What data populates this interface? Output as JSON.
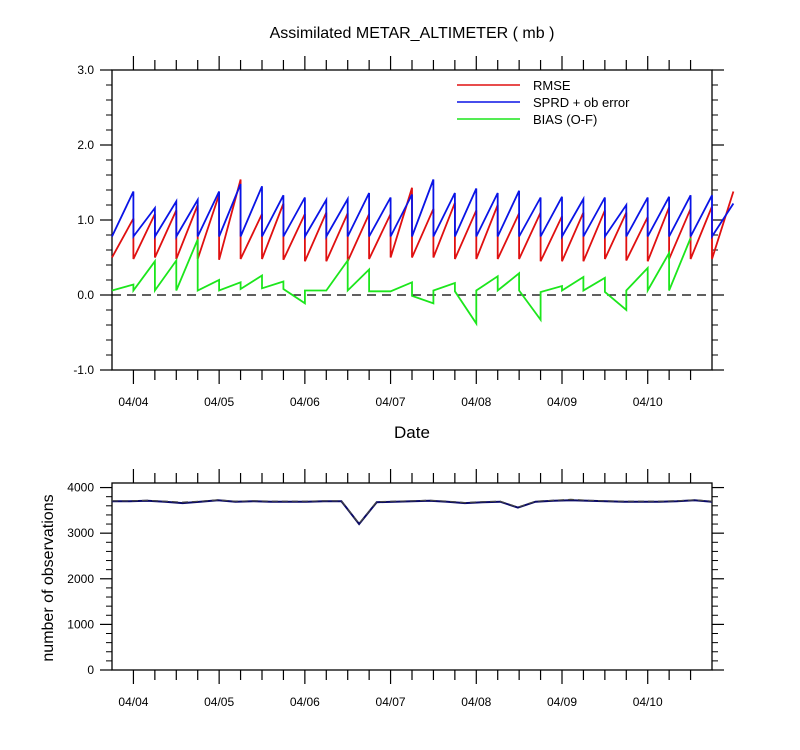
{
  "chart_data": [
    {
      "type": "line",
      "title": "Assimilated METAR_ALTIMETER ( mb )",
      "xlabel": "Date",
      "ylabel": "",
      "ylim": [
        -1.0,
        3.0
      ],
      "yticks": [
        -1.0,
        0.0,
        1.0,
        2.0,
        3.0
      ],
      "ytick_labels": [
        "-1.0",
        "0.0",
        "1.0",
        "2.0",
        "3.0"
      ],
      "xlim": [
        "04/03 18:00",
        "04/10 18:00"
      ],
      "x_tick_labels": [
        "04/04",
        "04/05",
        "04/06",
        "04/07",
        "04/08",
        "04/09",
        "04/10"
      ],
      "legend_position": "top-right",
      "reference_line": {
        "y": 0.0,
        "style": "dashed"
      },
      "time_step_hours": 6,
      "series": [
        {
          "name": "RMSE",
          "color": "#e01010",
          "segments": [
            [
              0.5,
              1.02
            ],
            [
              0.48,
              1.08
            ],
            [
              0.5,
              1.13
            ],
            [
              0.48,
              1.2
            ],
            [
              0.48,
              1.34
            ],
            [
              0.47,
              1.54
            ],
            [
              0.48,
              1.08
            ],
            [
              0.48,
              1.22
            ],
            [
              0.47,
              1.08
            ],
            [
              0.45,
              1.1
            ],
            [
              0.45,
              1.09
            ],
            [
              0.45,
              1.08
            ],
            [
              0.48,
              1.08
            ],
            [
              0.5,
              1.43
            ],
            [
              0.5,
              1.15
            ],
            [
              0.5,
              1.23
            ],
            [
              0.48,
              1.13
            ],
            [
              0.48,
              1.2
            ],
            [
              0.48,
              1.09
            ],
            [
              0.48,
              1.1
            ],
            [
              0.45,
              1.05
            ],
            [
              0.45,
              1.1
            ],
            [
              0.45,
              1.13
            ],
            [
              0.48,
              1.1
            ],
            [
              0.46,
              1.04
            ],
            [
              0.45,
              1.17
            ],
            [
              0.48,
              1.15
            ],
            [
              0.48,
              1.18
            ],
            [
              0.48,
              1.38
            ]
          ]
        },
        {
          "name": "SPRD + ob error",
          "color": "#0a14e6",
          "segments": [
            [
              0.78,
              1.38
            ],
            [
              0.78,
              1.16
            ],
            [
              0.78,
              1.25
            ],
            [
              0.78,
              1.27
            ],
            [
              0.78,
              1.38
            ],
            [
              0.78,
              1.48
            ],
            [
              0.78,
              1.45
            ],
            [
              0.78,
              1.33
            ],
            [
              0.78,
              1.3
            ],
            [
              0.78,
              1.27
            ],
            [
              0.78,
              1.28
            ],
            [
              0.78,
              1.36
            ],
            [
              0.78,
              1.3
            ],
            [
              0.78,
              1.34
            ],
            [
              0.78,
              1.54
            ],
            [
              0.78,
              1.36
            ],
            [
              0.78,
              1.42
            ],
            [
              0.78,
              1.36
            ],
            [
              0.78,
              1.39
            ],
            [
              0.78,
              1.3
            ],
            [
              0.78,
              1.31
            ],
            [
              0.78,
              1.28
            ],
            [
              0.78,
              1.3
            ],
            [
              0.78,
              1.2
            ],
            [
              0.78,
              1.3
            ],
            [
              0.78,
              1.31
            ],
            [
              0.78,
              1.33
            ],
            [
              0.78,
              1.33
            ],
            [
              0.78,
              1.22
            ]
          ]
        },
        {
          "name": "BIAS (O-F)",
          "color": "#1ce61c",
          "segments": [
            [
              0.06,
              0.14
            ],
            [
              0.06,
              0.45
            ],
            [
              0.06,
              0.46
            ],
            [
              0.06,
              0.74
            ],
            [
              0.06,
              0.2
            ],
            [
              0.06,
              0.17
            ],
            [
              0.08,
              0.26
            ],
            [
              0.09,
              0.18
            ],
            [
              0.08,
              -0.11
            ],
            [
              0.06,
              0.06
            ],
            [
              0.06,
              0.46
            ],
            [
              0.06,
              0.34
            ],
            [
              0.05,
              0.05
            ],
            [
              0.05,
              0.17
            ],
            [
              -0.01,
              -0.11
            ],
            [
              0.06,
              0.16
            ],
            [
              0.05,
              -0.38
            ],
            [
              0.06,
              0.25
            ],
            [
              0.06,
              0.29
            ],
            [
              0.06,
              -0.33
            ],
            [
              0.04,
              0.12
            ],
            [
              0.06,
              0.24
            ],
            [
              0.06,
              0.23
            ],
            [
              0.04,
              -0.2
            ],
            [
              0.06,
              0.36
            ],
            [
              0.06,
              0.56
            ],
            [
              0.06,
              0.76
            ]
          ]
        }
      ]
    },
    {
      "type": "line",
      "title": "",
      "xlabel": "",
      "ylabel": "number of observations",
      "ylim": [
        0,
        4100
      ],
      "yticks": [
        0,
        1000,
        2000,
        3000,
        4000
      ],
      "ytick_labels": [
        "0",
        "1000",
        "2000",
        "3000",
        "4000"
      ],
      "xlim": [
        "04/03 18:00",
        "04/10 18:00"
      ],
      "x_tick_labels": [
        "04/04",
        "04/05",
        "04/06",
        "04/07",
        "04/08",
        "04/09",
        "04/10"
      ],
      "series": [
        {
          "name": "",
          "color": "#0a0a66",
          "values": [
            3700,
            3700,
            3710,
            3690,
            3660,
            3690,
            3720,
            3690,
            3700,
            3690,
            3690,
            3690,
            3700,
            3700,
            3200,
            3680,
            3690,
            3700,
            3710,
            3690,
            3660,
            3680,
            3690,
            3560,
            3690,
            3710,
            3720,
            3710,
            3700,
            3690,
            3690,
            3690,
            3700,
            3720,
            3690
          ]
        },
        {
          "name": "",
          "color": "#444444",
          "style": "dashed",
          "values": [
            3710,
            3710,
            3720,
            3700,
            3680,
            3700,
            3730,
            3700,
            3710,
            3700,
            3700,
            3700,
            3710,
            3710,
            3210,
            3690,
            3700,
            3710,
            3720,
            3700,
            3670,
            3690,
            3700,
            3570,
            3700,
            3720,
            3740,
            3720,
            3710,
            3700,
            3700,
            3700,
            3710,
            3730,
            3700
          ]
        }
      ]
    }
  ],
  "colors": {
    "rmse": "#e01010",
    "sprd": "#0a14e6",
    "bias": "#1ce61c",
    "obs": "#0a0a66"
  }
}
